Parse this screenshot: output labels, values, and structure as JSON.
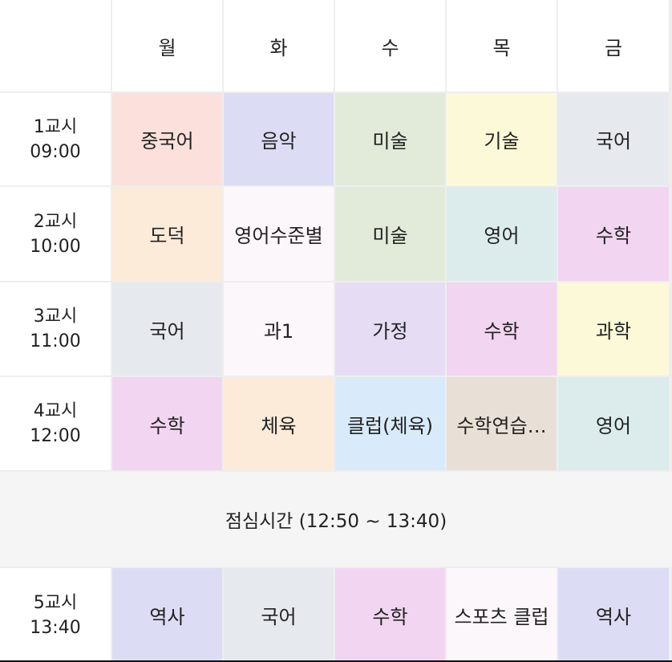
{
  "colors": {
    "peach": "#fbe0dc",
    "lavender": "#dcdcf5",
    "sage": "#e2ebd9",
    "cream": "#fbf9d8",
    "slate": "#e6e9ee",
    "apricot": "#fdebda",
    "blush": "#fcf7fb",
    "mint": "#dcecec",
    "orchid": "#f2d5f0",
    "violet": "#e6ddf5",
    "sky": "#d9ebfa",
    "tan": "#e8e0d6"
  },
  "header": {
    "days": [
      "월",
      "화",
      "수",
      "목",
      "금"
    ]
  },
  "periods": [
    {
      "label": "1교시",
      "time": "09:00",
      "subjects": [
        {
          "name": "중국어",
          "color": "#fbe0dc"
        },
        {
          "name": "음악",
          "color": "#dcdcf5"
        },
        {
          "name": "미술",
          "color": "#e2ebd9"
        },
        {
          "name": "기술",
          "color": "#fbf9d8"
        },
        {
          "name": "국어",
          "color": "#e6e9ee"
        }
      ]
    },
    {
      "label": "2교시",
      "time": "10:00",
      "subjects": [
        {
          "name": "도덕",
          "color": "#fdebda"
        },
        {
          "name": "영어수준별",
          "color": "#fcf7fb"
        },
        {
          "name": "미술",
          "color": "#e2ebd9"
        },
        {
          "name": "영어",
          "color": "#dcecec"
        },
        {
          "name": "수학",
          "color": "#f2d5f0"
        }
      ]
    },
    {
      "label": "3교시",
      "time": "11:00",
      "subjects": [
        {
          "name": "국어",
          "color": "#e6e9ee"
        },
        {
          "name": "과1",
          "color": "#fcf7fb"
        },
        {
          "name": "가정",
          "color": "#e6ddf5"
        },
        {
          "name": "수학",
          "color": "#f2d5f0"
        },
        {
          "name": "과학",
          "color": "#fbf9d8"
        }
      ]
    },
    {
      "label": "4교시",
      "time": "12:00",
      "subjects": [
        {
          "name": "수학",
          "color": "#f2d5f0"
        },
        {
          "name": "체육",
          "color": "#fdebda"
        },
        {
          "name": "클럽(체육)",
          "color": "#d9ebfa"
        },
        {
          "name": "수학연습…",
          "color": "#e8e0d6"
        },
        {
          "name": "영어",
          "color": "#dcecec"
        }
      ]
    }
  ],
  "lunch": {
    "label": "점심시간 (12:50 ~ 13:40)"
  },
  "afternoon": [
    {
      "label": "5교시",
      "time": "13:40",
      "subjects": [
        {
          "name": "역사",
          "color": "#dcdcf5"
        },
        {
          "name": "국어",
          "color": "#e6e9ee"
        },
        {
          "name": "수학",
          "color": "#f2d5f0"
        },
        {
          "name": "스포츠 클럽",
          "color": "#fcf7fb"
        },
        {
          "name": "역사",
          "color": "#dcdcf5"
        }
      ]
    }
  ]
}
